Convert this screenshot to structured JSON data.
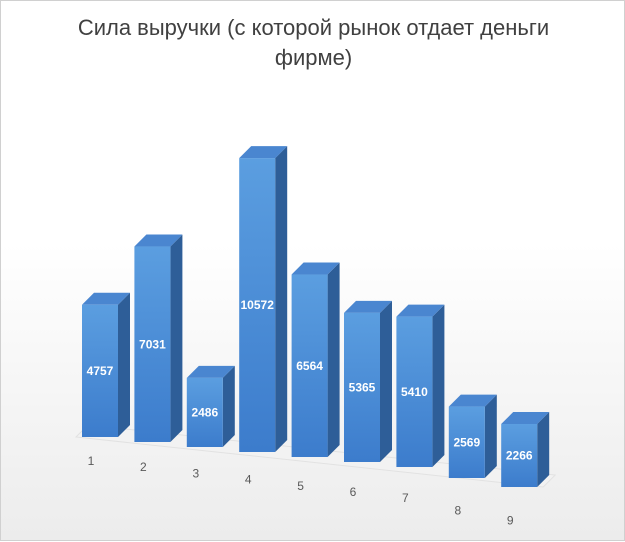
{
  "chart_data": {
    "type": "bar",
    "title": "Сила выручки (с которой рынок отдает деньги фирме)",
    "categories": [
      "1",
      "2",
      "3",
      "4",
      "5",
      "6",
      "7",
      "8",
      "9"
    ],
    "values": [
      4757,
      7031,
      2486,
      10572,
      6564,
      5365,
      5410,
      2569,
      2266
    ],
    "grid": false,
    "legend": "none",
    "three_d": true
  },
  "colors": {
    "bar_front_top": "#5b9ee0",
    "bar_front_bottom": "#3c7ccc",
    "bar_side": "#2e5e98",
    "bar_top": "#4a86d0",
    "floor": "#f2f2f2",
    "title": "#404040",
    "tick": "#595959"
  }
}
